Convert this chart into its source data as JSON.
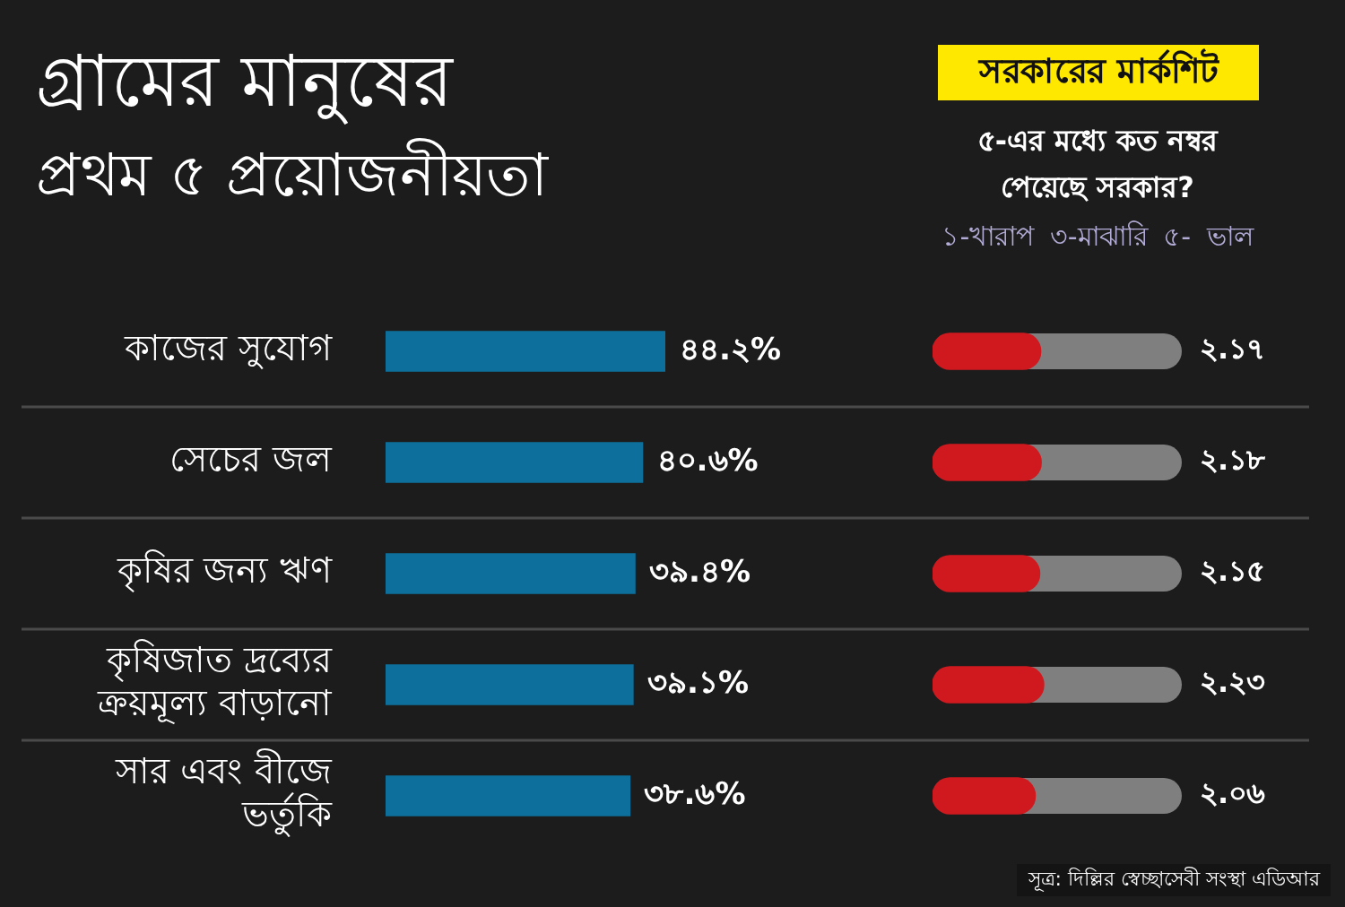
{
  "chart_data": [
    {
      "type": "bar",
      "orientation": "horizontal",
      "title": "গ্রামের মানুষের\nপ্রথম ৫ প্রয়োজনীয়তা",
      "categories": [
        "কাজের সুযোগ",
        "সেচের জল",
        "কৃষির জন্য ঋণ",
        "কৃষিজাত দ্রব্যের ক্রয়মূল্য বাড়ানো",
        "সার এবং বীজে ভর্তুকি"
      ],
      "values": [
        44.2,
        40.6,
        39.4,
        39.1,
        38.6
      ],
      "value_labels": [
        "৪৪.২%",
        "৪০.৬%",
        "৩৯.৪%",
        "৩৯.১%",
        "৩৮.৬%"
      ],
      "color": "#0d6f9c",
      "grid": "y",
      "tick_labels": "y",
      "annotations": [
        "সূত্র: দিল্লির স্বেচ্ছাসেবী সংস্থা এডিআর"
      ]
    },
    {
      "type": "bar",
      "orientation": "horizontal",
      "title": "সরকারের মার্কশিট",
      "subtitle": "৫-এর মধ্যে কত নম্বর পেয়েছে সরকার?",
      "categories": [
        null,
        null,
        null,
        null,
        null
      ],
      "values": [
        2.17,
        2.18,
        2.15,
        2.23,
        2.06
      ],
      "value_labels": [
        "২.১৭",
        "২.১৮",
        "২.১৫",
        "২.২৩",
        "২.০৬"
      ],
      "color": "#d0191e",
      "xlim": [
        0,
        5
      ],
      "grid": "y",
      "annotations": [
        "১-খারাপ ৩-মাঝারি ৫- ভাল"
      ]
    }
  ]
}
